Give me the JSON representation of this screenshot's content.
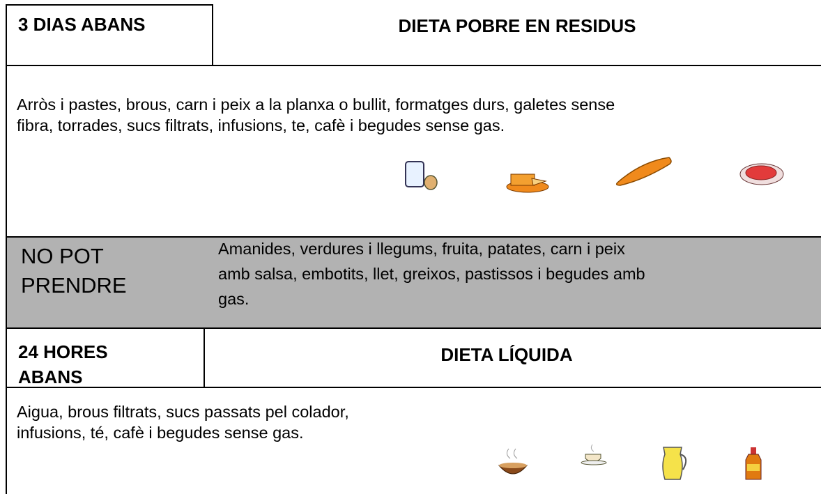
{
  "block1": {
    "label": "3 DIAS ABANS",
    "title": "DIETA POBRE EN RESIDUS",
    "text": [
      "Arròs i pastes, brous, carn i peix a la planxa o bullit, formatges durs, galetes sense",
      "fibra, torrades, sucs filtrats, infusions, te, cafè i begudes sense gas."
    ]
  },
  "forbidden": {
    "label": [
      "NO POT",
      "PRENDRE"
    ],
    "text": [
      "Amanides, verdures i llegums, fruita, patates,  carn  i  peix",
      "amb salsa, embotits, llet, greixos, pastissos i begudes amb",
      "gas."
    ]
  },
  "block2": {
    "label": [
      "24 HORES",
      "ABANS"
    ],
    "title": "DIETA LÍQUIDA",
    "text": [
      "Aigua, brous filtrats, sucs passats pel colador,",
      "infusions, té, cafè i begudes sense gas."
    ]
  }
}
